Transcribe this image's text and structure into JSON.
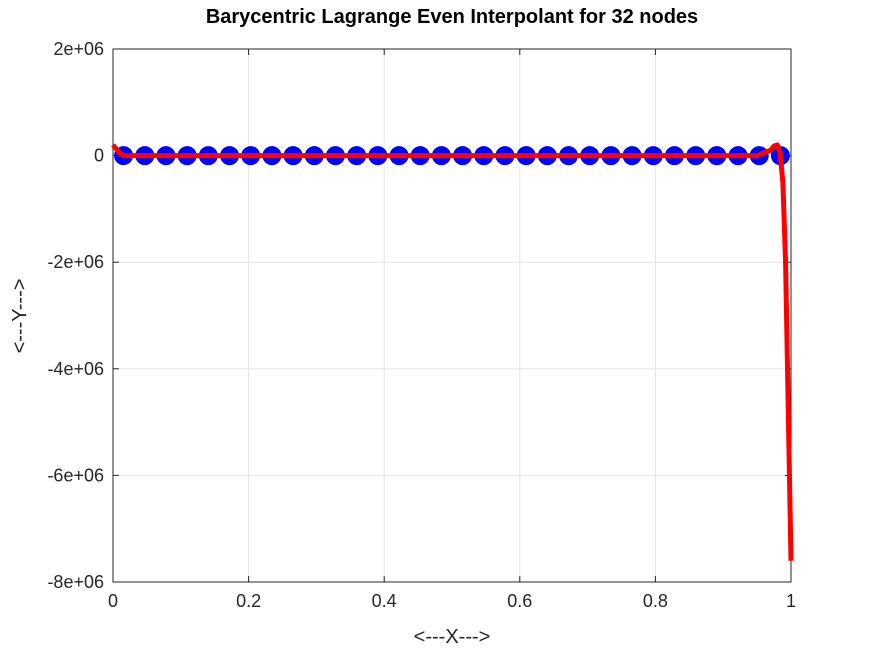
{
  "chart_data": {
    "type": "line",
    "title": "Barycentric Lagrange Even Interpolant for 32 nodes",
    "xlabel": "<---X--->",
    "ylabel": "<---Y--->",
    "xlim": [
      0,
      1
    ],
    "ylim": [
      -8000000,
      2000000
    ],
    "xticks": [
      0,
      0.2,
      0.4,
      0.6,
      0.8,
      1
    ],
    "xtick_labels": [
      "0",
      "0.2",
      "0.4",
      "0.6",
      "0.8",
      "1"
    ],
    "yticks": [
      2000000,
      0,
      -2000000,
      -4000000,
      -6000000,
      -8000000
    ],
    "ytick_labels": [
      "2e+06",
      "0",
      "-2e+06",
      "-4e+06",
      "-6e+06",
      "-8e+06"
    ],
    "grid": true,
    "nodes_color": "#0000ff",
    "curve_color": "#ff0000",
    "nodes": {
      "x": [
        0.0156,
        0.0469,
        0.0781,
        0.1094,
        0.1406,
        0.1719,
        0.2031,
        0.2344,
        0.2656,
        0.2969,
        0.3281,
        0.3594,
        0.3906,
        0.4219,
        0.4531,
        0.4844,
        0.5156,
        0.5469,
        0.5781,
        0.6094,
        0.6406,
        0.6719,
        0.7031,
        0.7344,
        0.7656,
        0.7969,
        0.8281,
        0.8594,
        0.8906,
        0.9219,
        0.9531,
        0.9844
      ],
      "y": [
        0,
        0,
        0,
        0,
        0,
        0,
        0,
        0,
        0,
        0,
        0,
        0,
        0,
        0,
        0,
        0,
        0,
        0,
        0,
        0,
        0,
        0,
        0,
        0,
        0,
        0,
        0,
        0,
        0,
        0,
        0,
        0
      ]
    },
    "curve": {
      "x": [
        0,
        0.01,
        0.0156,
        0.05,
        0.1,
        0.2,
        0.3,
        0.4,
        0.5,
        0.6,
        0.7,
        0.8,
        0.9,
        0.95,
        0.97,
        0.975,
        0.98,
        0.984,
        0.988,
        0.992,
        0.996,
        1.0
      ],
      "y": [
        200000,
        50000,
        0,
        0,
        0,
        0,
        0,
        0,
        0,
        0,
        0,
        0,
        0,
        0,
        100000,
        180000,
        200000,
        50000,
        -500000,
        -2000000,
        -4800000,
        -7600000
      ]
    }
  }
}
